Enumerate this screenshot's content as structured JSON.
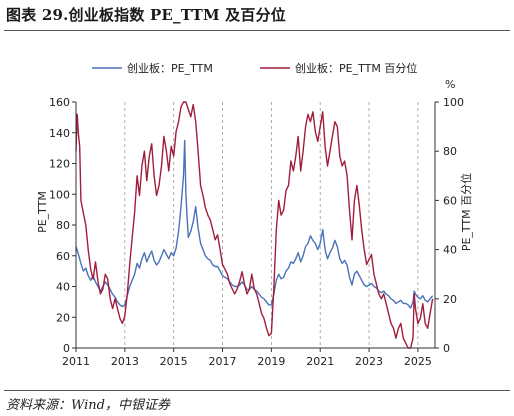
{
  "title": "图表 29.创业板指数 PE_TTM 及百分位",
  "source": "资料来源：Wind，中银证券",
  "chart_data": {
    "type": "line",
    "series": [
      {
        "name": "创业板：PE_TTM",
        "axis": "left",
        "color": "#4a72b8",
        "points": [
          [
            2011.0,
            66
          ],
          [
            2011.1,
            61
          ],
          [
            2011.2,
            55
          ],
          [
            2011.3,
            50
          ],
          [
            2011.4,
            52
          ],
          [
            2011.5,
            47
          ],
          [
            2011.6,
            44
          ],
          [
            2011.7,
            47
          ],
          [
            2011.8,
            43
          ],
          [
            2011.9,
            40
          ],
          [
            2012.0,
            37
          ],
          [
            2012.1,
            40
          ],
          [
            2012.2,
            43
          ],
          [
            2012.3,
            41
          ],
          [
            2012.4,
            38
          ],
          [
            2012.5,
            35
          ],
          [
            2012.6,
            33
          ],
          [
            2012.7,
            30
          ],
          [
            2012.8,
            28
          ],
          [
            2012.9,
            27
          ],
          [
            2013.0,
            28
          ],
          [
            2013.1,
            34
          ],
          [
            2013.2,
            40
          ],
          [
            2013.3,
            44
          ],
          [
            2013.4,
            48
          ],
          [
            2013.5,
            55
          ],
          [
            2013.6,
            52
          ],
          [
            2013.7,
            58
          ],
          [
            2013.8,
            62
          ],
          [
            2013.9,
            56
          ],
          [
            2014.0,
            60
          ],
          [
            2014.1,
            63
          ],
          [
            2014.2,
            57
          ],
          [
            2014.3,
            54
          ],
          [
            2014.4,
            56
          ],
          [
            2014.5,
            60
          ],
          [
            2014.6,
            64
          ],
          [
            2014.7,
            61
          ],
          [
            2014.8,
            58
          ],
          [
            2014.9,
            62
          ],
          [
            2015.0,
            60
          ],
          [
            2015.1,
            65
          ],
          [
            2015.2,
            76
          ],
          [
            2015.3,
            92
          ],
          [
            2015.4,
            112
          ],
          [
            2015.45,
            135
          ],
          [
            2015.5,
            100
          ],
          [
            2015.55,
            85
          ],
          [
            2015.6,
            72
          ],
          [
            2015.7,
            76
          ],
          [
            2015.8,
            82
          ],
          [
            2015.9,
            92
          ],
          [
            2016.0,
            78
          ],
          [
            2016.1,
            68
          ],
          [
            2016.2,
            64
          ],
          [
            2016.3,
            60
          ],
          [
            2016.4,
            58
          ],
          [
            2016.5,
            57
          ],
          [
            2016.6,
            54
          ],
          [
            2016.7,
            53
          ],
          [
            2016.8,
            53
          ],
          [
            2016.9,
            50
          ],
          [
            2017.0,
            47
          ],
          [
            2017.1,
            46
          ],
          [
            2017.2,
            45
          ],
          [
            2017.3,
            43
          ],
          [
            2017.4,
            41
          ],
          [
            2017.5,
            40
          ],
          [
            2017.6,
            40
          ],
          [
            2017.7,
            41
          ],
          [
            2017.8,
            43
          ],
          [
            2017.9,
            41
          ],
          [
            2018.0,
            38
          ],
          [
            2018.1,
            38
          ],
          [
            2018.2,
            40
          ],
          [
            2018.3,
            38
          ],
          [
            2018.4,
            37
          ],
          [
            2018.5,
            35
          ],
          [
            2018.6,
            33
          ],
          [
            2018.7,
            32
          ],
          [
            2018.8,
            30
          ],
          [
            2018.9,
            28
          ],
          [
            2019.0,
            28
          ],
          [
            2019.1,
            35
          ],
          [
            2019.2,
            44
          ],
          [
            2019.3,
            48
          ],
          [
            2019.4,
            45
          ],
          [
            2019.5,
            46
          ],
          [
            2019.6,
            50
          ],
          [
            2019.7,
            52
          ],
          [
            2019.8,
            56
          ],
          [
            2019.9,
            55
          ],
          [
            2020.0,
            58
          ],
          [
            2020.1,
            62
          ],
          [
            2020.2,
            56
          ],
          [
            2020.3,
            60
          ],
          [
            2020.4,
            66
          ],
          [
            2020.5,
            68
          ],
          [
            2020.6,
            73
          ],
          [
            2020.7,
            70
          ],
          [
            2020.8,
            68
          ],
          [
            2020.9,
            64
          ],
          [
            2021.0,
            68
          ],
          [
            2021.1,
            77
          ],
          [
            2021.2,
            64
          ],
          [
            2021.3,
            58
          ],
          [
            2021.4,
            62
          ],
          [
            2021.5,
            65
          ],
          [
            2021.6,
            70
          ],
          [
            2021.7,
            66
          ],
          [
            2021.8,
            58
          ],
          [
            2021.9,
            55
          ],
          [
            2022.0,
            57
          ],
          [
            2022.1,
            54
          ],
          [
            2022.2,
            46
          ],
          [
            2022.3,
            41
          ],
          [
            2022.4,
            48
          ],
          [
            2022.5,
            50
          ],
          [
            2022.6,
            47
          ],
          [
            2022.7,
            44
          ],
          [
            2022.8,
            41
          ],
          [
            2022.9,
            40
          ],
          [
            2023.0,
            41
          ],
          [
            2023.1,
            42
          ],
          [
            2023.2,
            40
          ],
          [
            2023.3,
            39
          ],
          [
            2023.4,
            37
          ],
          [
            2023.5,
            36
          ],
          [
            2023.6,
            37
          ],
          [
            2023.7,
            35
          ],
          [
            2023.8,
            34
          ],
          [
            2023.9,
            32
          ],
          [
            2024.0,
            31
          ],
          [
            2024.1,
            29
          ],
          [
            2024.2,
            30
          ],
          [
            2024.3,
            31
          ],
          [
            2024.4,
            29
          ],
          [
            2024.5,
            29
          ],
          [
            2024.6,
            28
          ],
          [
            2024.7,
            26
          ],
          [
            2024.8,
            30
          ],
          [
            2024.85,
            37
          ],
          [
            2024.9,
            35
          ],
          [
            2025.0,
            33
          ],
          [
            2025.1,
            32
          ],
          [
            2025.2,
            34
          ],
          [
            2025.3,
            31
          ],
          [
            2025.4,
            30
          ],
          [
            2025.5,
            32
          ],
          [
            2025.6,
            34
          ]
        ]
      },
      {
        "name": "创业板：PE_TTM 百分位",
        "axis": "right",
        "color": "#a11d3c",
        "points": [
          [
            2011.0,
            80
          ],
          [
            2011.05,
            95
          ],
          [
            2011.1,
            87
          ],
          [
            2011.15,
            82
          ],
          [
            2011.2,
            60
          ],
          [
            2011.3,
            55
          ],
          [
            2011.4,
            50
          ],
          [
            2011.5,
            40
          ],
          [
            2011.6,
            32
          ],
          [
            2011.7,
            28
          ],
          [
            2011.8,
            35
          ],
          [
            2011.9,
            27
          ],
          [
            2012.0,
            22
          ],
          [
            2012.1,
            24
          ],
          [
            2012.2,
            30
          ],
          [
            2012.3,
            28
          ],
          [
            2012.4,
            20
          ],
          [
            2012.5,
            16
          ],
          [
            2012.6,
            20
          ],
          [
            2012.7,
            16
          ],
          [
            2012.8,
            12
          ],
          [
            2012.9,
            10
          ],
          [
            2013.0,
            13
          ],
          [
            2013.1,
            22
          ],
          [
            2013.2,
            34
          ],
          [
            2013.3,
            45
          ],
          [
            2013.4,
            55
          ],
          [
            2013.5,
            70
          ],
          [
            2013.6,
            62
          ],
          [
            2013.7,
            74
          ],
          [
            2013.8,
            80
          ],
          [
            2013.9,
            68
          ],
          [
            2014.0,
            78
          ],
          [
            2014.1,
            83
          ],
          [
            2014.2,
            70
          ],
          [
            2014.3,
            62
          ],
          [
            2014.4,
            66
          ],
          [
            2014.5,
            74
          ],
          [
            2014.6,
            86
          ],
          [
            2014.7,
            80
          ],
          [
            2014.8,
            72
          ],
          [
            2014.9,
            82
          ],
          [
            2015.0,
            78
          ],
          [
            2015.1,
            88
          ],
          [
            2015.2,
            92
          ],
          [
            2015.3,
            98
          ],
          [
            2015.4,
            100
          ],
          [
            2015.5,
            100
          ],
          [
            2015.6,
            97
          ],
          [
            2015.7,
            94
          ],
          [
            2015.8,
            99
          ],
          [
            2015.9,
            92
          ],
          [
            2016.0,
            80
          ],
          [
            2016.1,
            66
          ],
          [
            2016.2,
            62
          ],
          [
            2016.3,
            57
          ],
          [
            2016.4,
            54
          ],
          [
            2016.5,
            52
          ],
          [
            2016.6,
            48
          ],
          [
            2016.7,
            44
          ],
          [
            2016.8,
            46
          ],
          [
            2016.9,
            40
          ],
          [
            2017.0,
            34
          ],
          [
            2017.1,
            32
          ],
          [
            2017.2,
            30
          ],
          [
            2017.3,
            26
          ],
          [
            2017.4,
            24
          ],
          [
            2017.5,
            22
          ],
          [
            2017.6,
            24
          ],
          [
            2017.7,
            27
          ],
          [
            2017.8,
            31
          ],
          [
            2017.9,
            26
          ],
          [
            2018.0,
            22
          ],
          [
            2018.1,
            24
          ],
          [
            2018.2,
            30
          ],
          [
            2018.3,
            24
          ],
          [
            2018.4,
            22
          ],
          [
            2018.5,
            18
          ],
          [
            2018.6,
            14
          ],
          [
            2018.7,
            12
          ],
          [
            2018.8,
            8
          ],
          [
            2018.9,
            5
          ],
          [
            2019.0,
            6
          ],
          [
            2019.1,
            24
          ],
          [
            2019.2,
            48
          ],
          [
            2019.3,
            60
          ],
          [
            2019.4,
            54
          ],
          [
            2019.5,
            56
          ],
          [
            2019.6,
            64
          ],
          [
            2019.7,
            66
          ],
          [
            2019.8,
            76
          ],
          [
            2019.9,
            72
          ],
          [
            2020.0,
            78
          ],
          [
            2020.1,
            86
          ],
          [
            2020.2,
            72
          ],
          [
            2020.3,
            80
          ],
          [
            2020.4,
            90
          ],
          [
            2020.5,
            95
          ],
          [
            2020.6,
            92
          ],
          [
            2020.7,
            96
          ],
          [
            2020.8,
            88
          ],
          [
            2020.9,
            84
          ],
          [
            2021.0,
            90
          ],
          [
            2021.1,
            96
          ],
          [
            2021.2,
            82
          ],
          [
            2021.3,
            74
          ],
          [
            2021.4,
            80
          ],
          [
            2021.5,
            86
          ],
          [
            2021.6,
            92
          ],
          [
            2021.7,
            90
          ],
          [
            2021.8,
            78
          ],
          [
            2021.9,
            74
          ],
          [
            2022.0,
            76
          ],
          [
            2022.1,
            70
          ],
          [
            2022.2,
            56
          ],
          [
            2022.3,
            44
          ],
          [
            2022.4,
            60
          ],
          [
            2022.5,
            66
          ],
          [
            2022.6,
            58
          ],
          [
            2022.7,
            48
          ],
          [
            2022.8,
            40
          ],
          [
            2022.9,
            34
          ],
          [
            2023.0,
            36
          ],
          [
            2023.1,
            38
          ],
          [
            2023.2,
            30
          ],
          [
            2023.3,
            26
          ],
          [
            2023.4,
            22
          ],
          [
            2023.5,
            20
          ],
          [
            2023.6,
            22
          ],
          [
            2023.7,
            18
          ],
          [
            2023.8,
            14
          ],
          [
            2023.9,
            10
          ],
          [
            2024.0,
            8
          ],
          [
            2024.1,
            4
          ],
          [
            2024.2,
            8
          ],
          [
            2024.3,
            10
          ],
          [
            2024.4,
            4
          ],
          [
            2024.5,
            2
          ],
          [
            2024.6,
            0
          ],
          [
            2024.7,
            0
          ],
          [
            2024.8,
            4
          ],
          [
            2024.85,
            22
          ],
          [
            2024.9,
            16
          ],
          [
            2025.0,
            10
          ],
          [
            2025.1,
            12
          ],
          [
            2025.2,
            18
          ],
          [
            2025.3,
            10
          ],
          [
            2025.4,
            8
          ],
          [
            2025.5,
            14
          ],
          [
            2025.6,
            20
          ]
        ]
      }
    ],
    "xlim": [
      2011,
      2025.7
    ],
    "xticks": [
      2011,
      2013,
      2015,
      2017,
      2019,
      2021,
      2023,
      2025
    ],
    "ylim_left": [
      0,
      160
    ],
    "yticks_left": [
      0,
      20,
      40,
      60,
      80,
      100,
      120,
      140,
      160
    ],
    "ylim_right": [
      0,
      100
    ],
    "yticks_right": [
      0,
      20,
      40,
      60,
      80,
      100
    ],
    "ylabel_left": "PE_TTM",
    "ylabel_right": "PE_TTM 百分位",
    "right_unit": "%",
    "grid": "vertical dashed",
    "legend_position": "top-center"
  }
}
